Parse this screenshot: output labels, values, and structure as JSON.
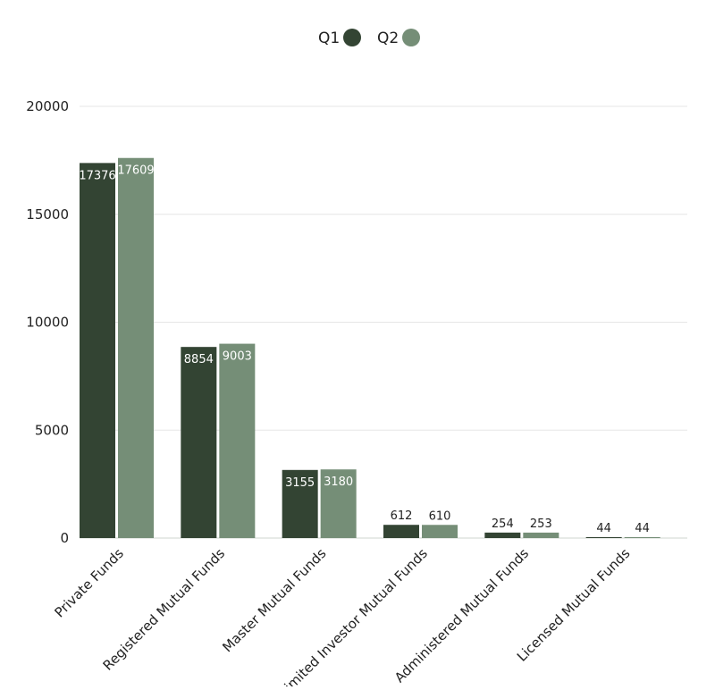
{
  "chart_data": {
    "type": "bar",
    "title": "",
    "xlabel": "",
    "ylabel": "",
    "ylim": [
      0,
      20000
    ],
    "yticks": [
      0,
      5000,
      10000,
      15000,
      20000
    ],
    "grid": true,
    "legend_position": "top-center",
    "categories": [
      "Private Funds",
      "Registered Mutual Funds",
      "Master Mutual Funds",
      "Limited Investor Mutual Funds",
      "Administered Mutual Funds",
      "Licensed Mutual Funds"
    ],
    "series": [
      {
        "name": "Q1",
        "color": "#334433",
        "values": [
          17376,
          8854,
          3155,
          612,
          254,
          44
        ]
      },
      {
        "name": "Q2",
        "color": "#758e77",
        "values": [
          17609,
          9003,
          3180,
          610,
          253,
          44
        ]
      }
    ]
  }
}
